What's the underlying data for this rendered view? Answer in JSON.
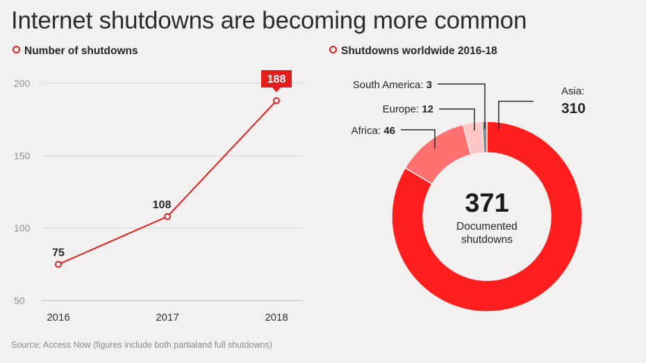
{
  "title": "Internet shutdowns are becoming more common",
  "source": "Source: Access Now (figures include both partialand full shutdowns)",
  "chart_data": [
    {
      "type": "line",
      "title": "Number of shutdowns",
      "x": [
        "2016",
        "2017",
        "2018"
      ],
      "y": [
        75,
        108,
        188
      ],
      "data_labels": [
        "75",
        "108",
        "188"
      ],
      "ylim": [
        50,
        200
      ],
      "yticks": [
        50,
        100,
        150,
        200
      ],
      "ytick_labels": [
        "50",
        "100",
        "150",
        "200"
      ],
      "grid": true,
      "color": "#e41d1d"
    },
    {
      "type": "pie",
      "title": "Shutdowns worldwide 2016-18",
      "donut": true,
      "center_value": "371",
      "center_text_line1": "Documented",
      "center_text_line2": "shutdowns",
      "slices": [
        {
          "name": "Asia",
          "label": "Asia:",
          "value": 310,
          "value_label": "310",
          "color": "#ff1e1e"
        },
        {
          "name": "Africa",
          "label": "Africa:",
          "value": 46,
          "value_label": "46",
          "color": "#ff7070"
        },
        {
          "name": "Europe",
          "label": "Europe:",
          "value": 12,
          "value_label": "12",
          "color": "#ffc6c6"
        },
        {
          "name": "South America",
          "label": "South America:",
          "value": 3,
          "value_label": "3",
          "color": "#8c8c8c"
        }
      ]
    }
  ]
}
